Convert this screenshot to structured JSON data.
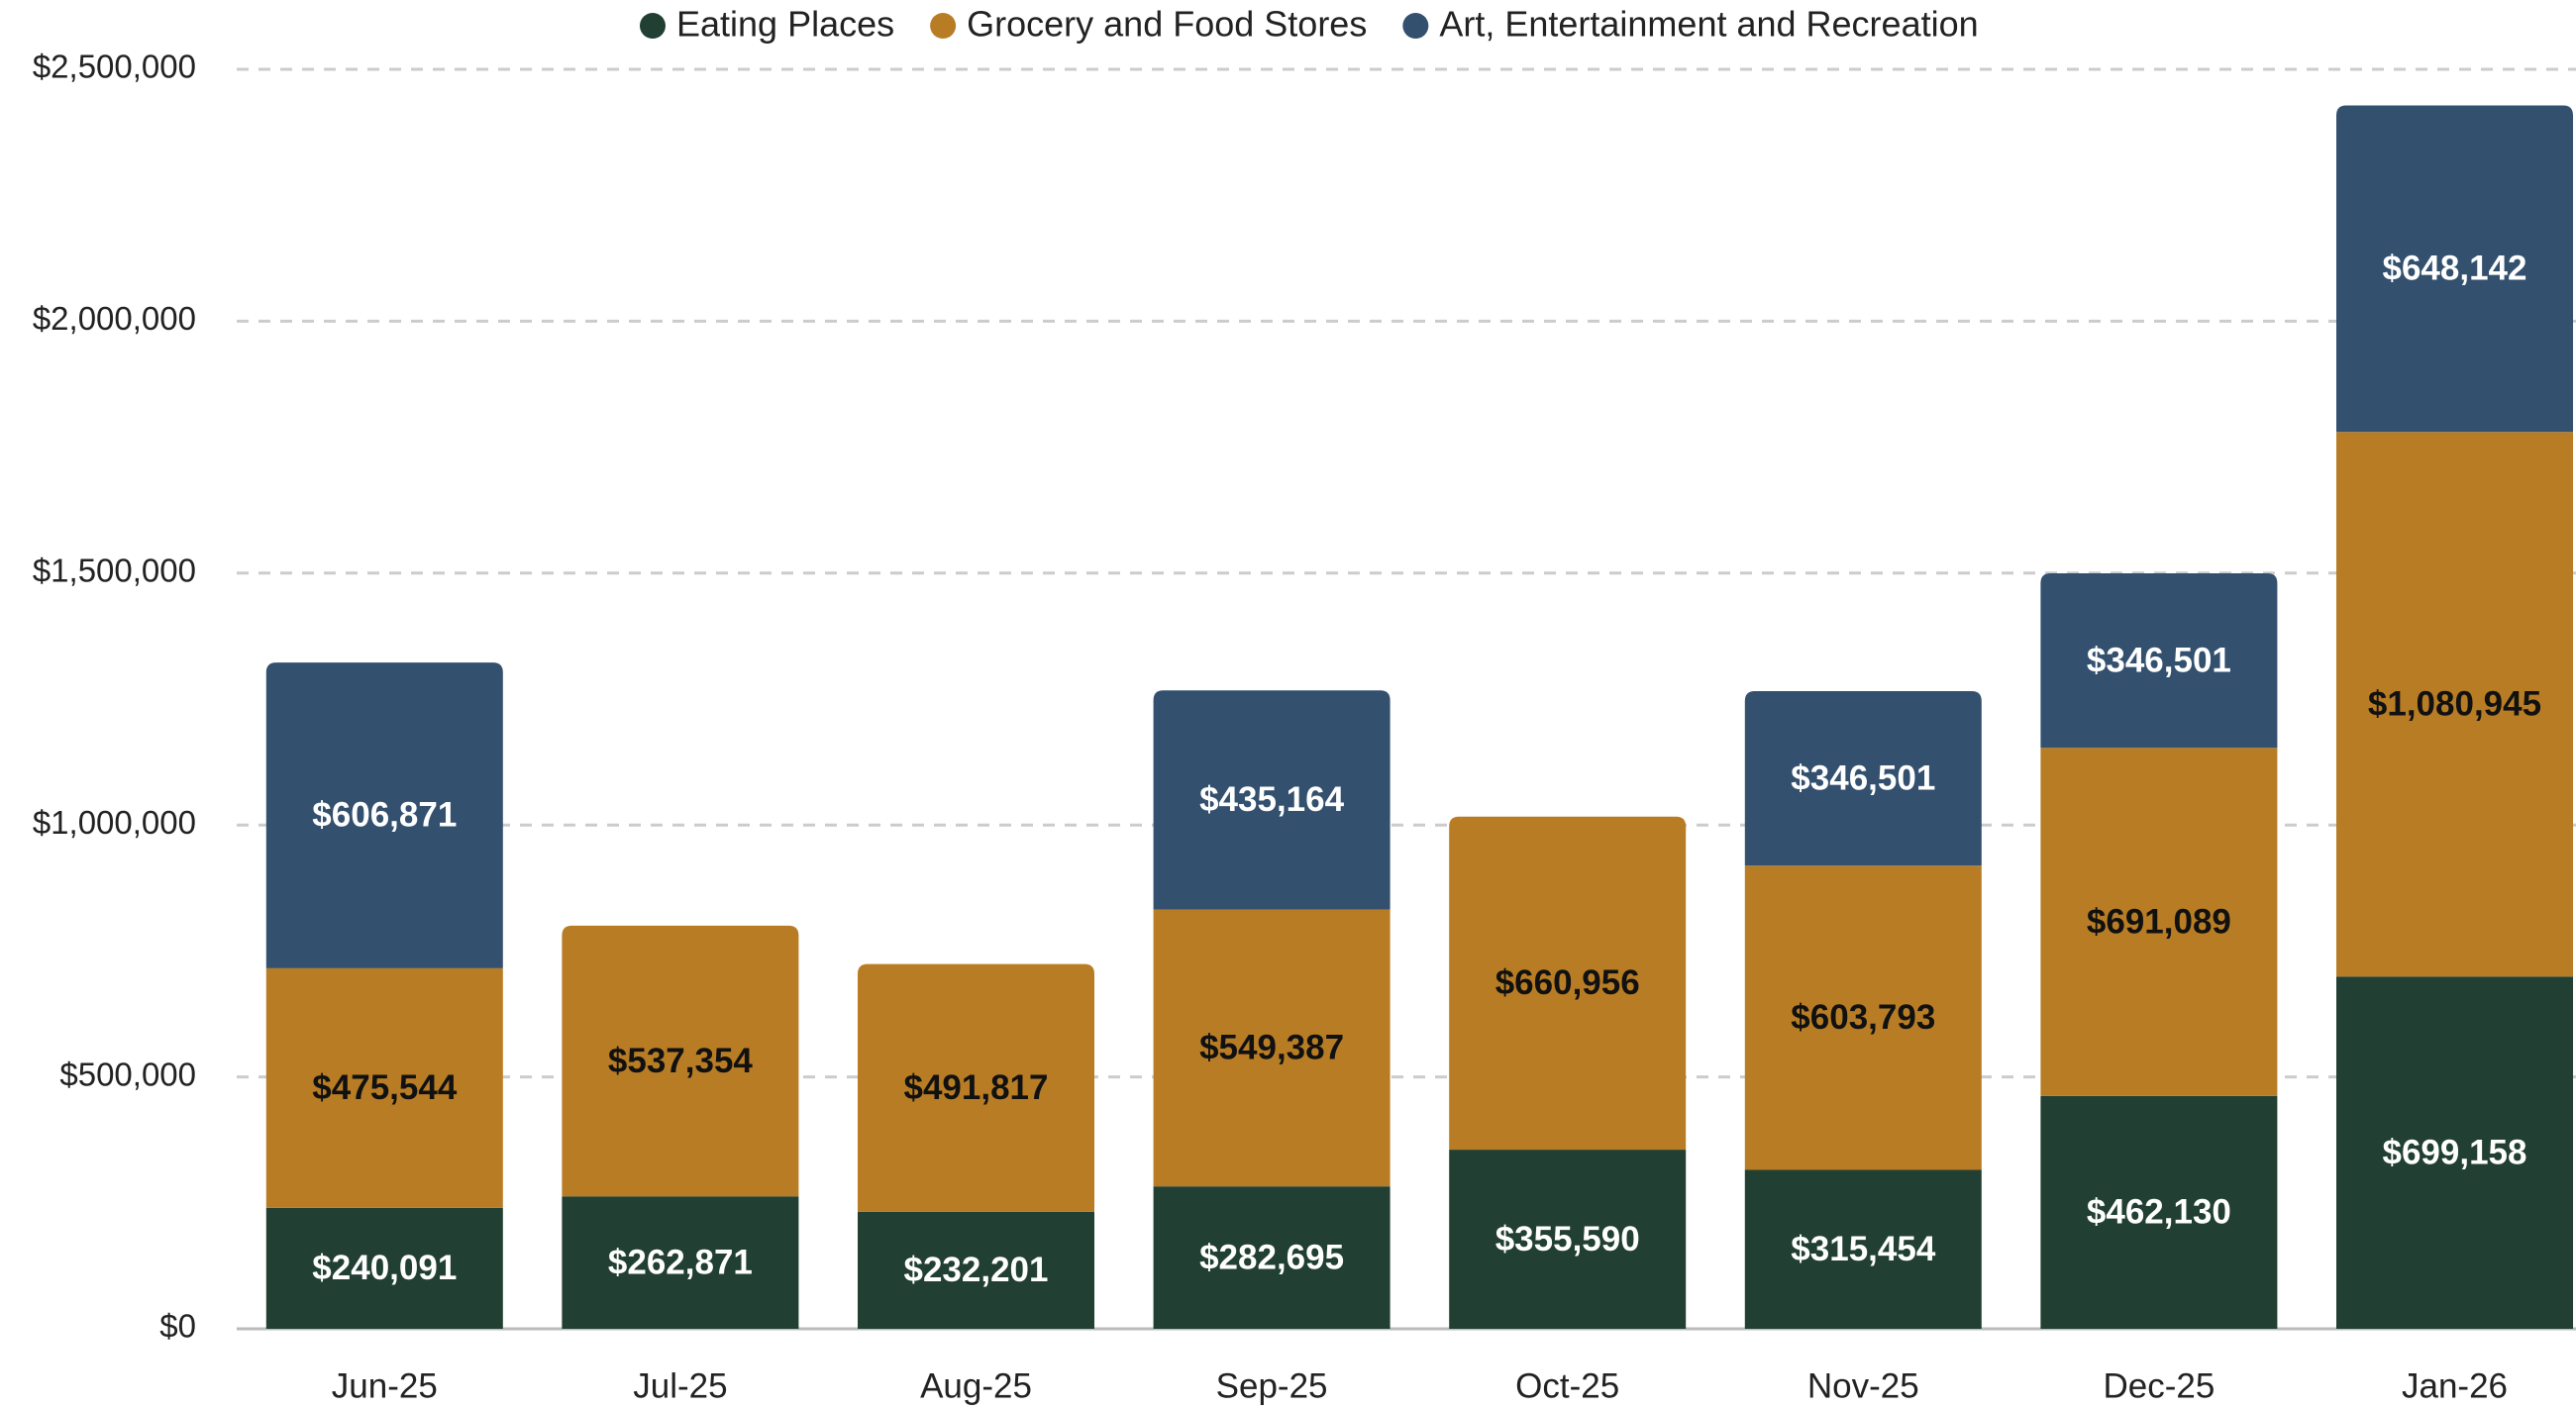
{
  "chart_data": {
    "type": "stacked_bar",
    "categories": [
      "Jun-25",
      "Jul-25",
      "Aug-25",
      "Sep-25",
      "Oct-25",
      "Nov-25",
      "Dec-25",
      "Jan-26"
    ],
    "series": [
      {
        "name": "Eating Places",
        "color": "#213f33",
        "label_color": "#ffffff",
        "values": [
          240091,
          262871,
          232201,
          282695,
          355590,
          315454,
          462130,
          699158
        ],
        "value_labels": [
          "$240,091",
          "$262,871",
          "$232,201",
          "$282,695",
          "$355,590",
          "$315,454",
          "$462,130",
          "$699,158"
        ]
      },
      {
        "name": "Grocery and Food Stores",
        "color": "#b87d24",
        "label_color": "#111111",
        "values": [
          475544,
          537354,
          491817,
          549387,
          660956,
          603793,
          691089,
          1080945
        ],
        "value_labels": [
          "$475,544",
          "$537,354",
          "$491,817",
          "$549,387",
          "$660,956",
          "$603,793",
          "$691,089",
          "$1,080,945"
        ]
      },
      {
        "name": "Art, Entertainment and Recreation",
        "color": "#34506f",
        "label_color": "#ffffff",
        "values": [
          606871,
          null,
          null,
          435164,
          null,
          346501,
          346501,
          648142
        ],
        "value_labels": [
          "$606,871",
          null,
          null,
          "$435,164",
          null,
          "$346,501",
          "$346,501",
          "$648,142"
        ]
      }
    ],
    "ylim": [
      0,
      2500000
    ],
    "yticks": [
      {
        "value": 0,
        "label": "$0"
      },
      {
        "value": 500000,
        "label": "$500,000"
      },
      {
        "value": 1000000,
        "label": "$1,000,000"
      },
      {
        "value": 1500000,
        "label": "$1,500,000"
      },
      {
        "value": 2000000,
        "label": "$2,000,000"
      },
      {
        "value": 2500000,
        "label": "$2,500,000"
      }
    ],
    "grid": true,
    "legend": "top"
  }
}
